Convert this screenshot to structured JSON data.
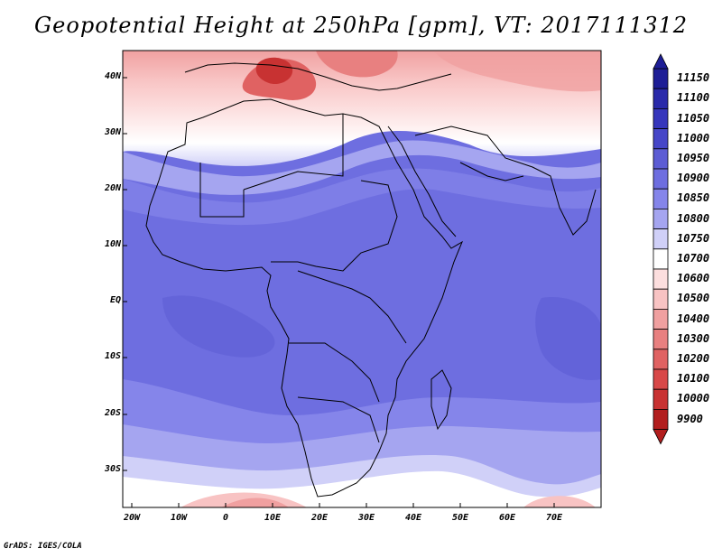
{
  "title": "Geopotential Height at 250hPa [gpm], VT: 2017111312",
  "credit": "GrADS: IGES/COLA",
  "lat_labels": [
    "40N",
    "30N",
    "20N",
    "10N",
    "EQ",
    "10S",
    "20S",
    "30S"
  ],
  "lon_labels": [
    "20W",
    "10W",
    "0",
    "10E",
    "20E",
    "30E",
    "40E",
    "50E",
    "60E",
    "70E"
  ],
  "colorbar": {
    "levels": [
      "11150",
      "11100",
      "11050",
      "11000",
      "10950",
      "10900",
      "10850",
      "10800",
      "10750",
      "10700",
      "10600",
      "10500",
      "10400",
      "10300",
      "10200",
      "10100",
      "10000",
      "9900"
    ],
    "colors": [
      "#1e1e96",
      "#2a2aaa",
      "#3636bc",
      "#4646c8",
      "#5c5cd4",
      "#6e6ee0",
      "#8585ea",
      "#a5a5f0",
      "#d0d0f8",
      "#ffffff",
      "#fcdede",
      "#f8c3c3",
      "#f0a0a0",
      "#e88080",
      "#e06262",
      "#d84848",
      "#c83232",
      "#b21e1e"
    ]
  }
}
